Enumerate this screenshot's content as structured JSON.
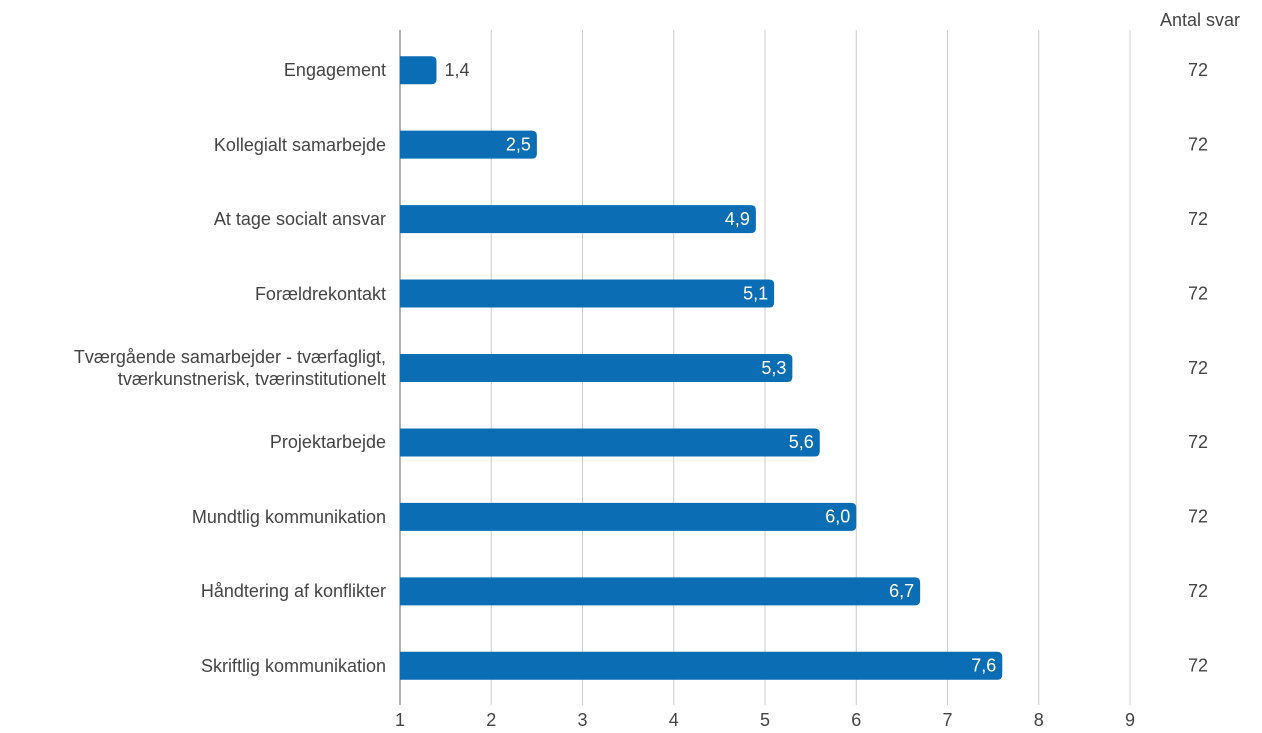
{
  "chart_data": {
    "type": "bar",
    "orientation": "horizontal",
    "categories": [
      "Engagement",
      "Kollegialt samarbejde",
      "At tage socialt ansvar",
      "Forældrekontakt",
      "Tværgående samarbejder - tværfagligt,\ntværkunstnerisk, tværinstitutionelt",
      "Projektarbejde",
      "Mundtlig kommunikation",
      "Håndtering af konflikter",
      "Skriftlig kommunikation"
    ],
    "values": [
      1.4,
      2.5,
      4.9,
      5.1,
      5.3,
      5.6,
      6.0,
      6.7,
      7.6
    ],
    "value_labels": [
      "1,4",
      "2,5",
      "4,9",
      "5,1",
      "5,3",
      "5,6",
      "6,0",
      "6,7",
      "7,6"
    ],
    "color": "#0b6db3",
    "xlim": [
      1,
      9
    ],
    "xticks": [
      1,
      2,
      3,
      4,
      5,
      6,
      7,
      8,
      9
    ],
    "grid": true,
    "counts_title": "Antal svar",
    "counts": [
      72,
      72,
      72,
      72,
      72,
      72,
      72,
      72,
      72
    ]
  }
}
